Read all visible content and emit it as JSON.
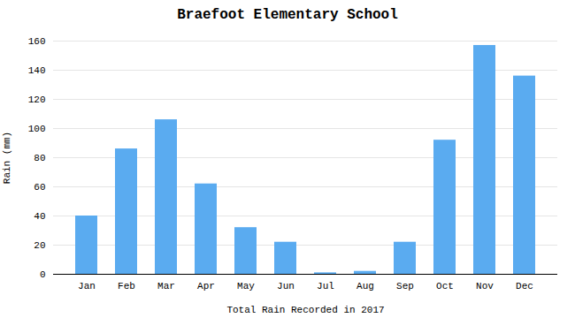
{
  "chart_data": {
    "type": "bar",
    "title": "Braefoot Elementary School",
    "xlabel": "Total Rain Recorded in 2017",
    "ylabel": "Rain (mm)",
    "categories": [
      "Jan",
      "Feb",
      "Mar",
      "Apr",
      "May",
      "Jun",
      "Jul",
      "Aug",
      "Sep",
      "Oct",
      "Nov",
      "Dec"
    ],
    "values": [
      40,
      86,
      106,
      62,
      32,
      22,
      1,
      2,
      22,
      92,
      157,
      136
    ],
    "color": "#5aabf0",
    "ylim": [
      0,
      160
    ],
    "yticks": [
      0,
      20,
      40,
      60,
      80,
      100,
      120,
      140,
      160
    ],
    "grid": true
  }
}
